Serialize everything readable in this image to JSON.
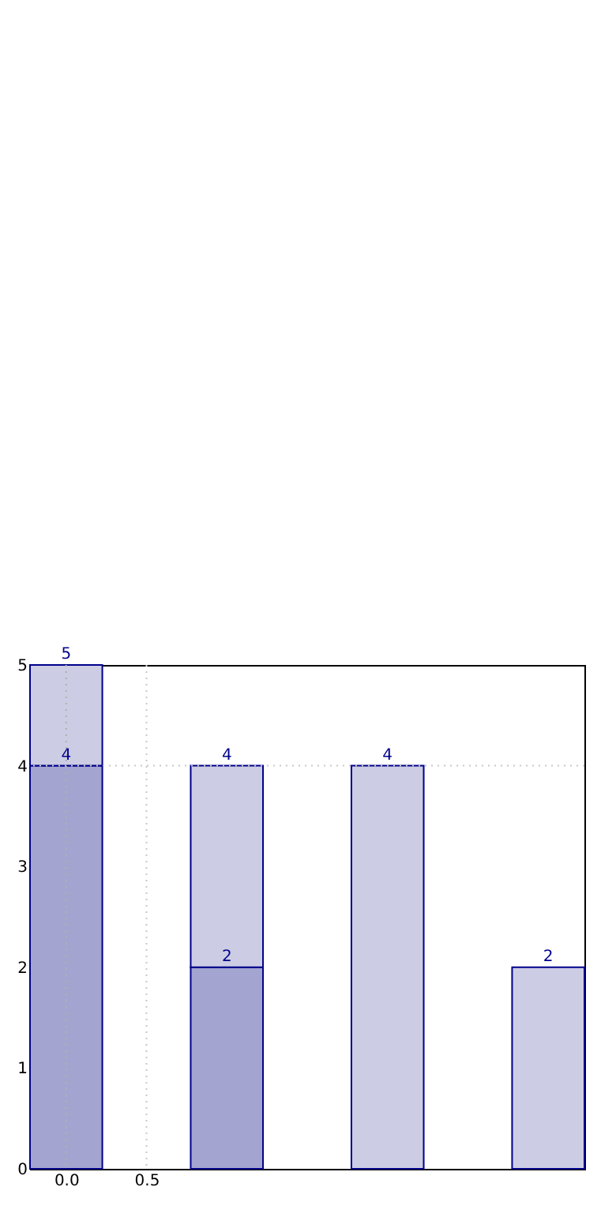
{
  "chart_data": {
    "type": "bar",
    "stacked": true,
    "x": [
      0,
      1,
      2,
      3
    ],
    "series": [
      {
        "color": "#a3a5d0",
        "values": [
          4,
          2,
          null,
          null
        ],
        "value_labels": [
          "4",
          "2",
          null,
          null
        ]
      },
      {
        "color": "#cccce4",
        "values": [
          1,
          2,
          4,
          2
        ]
      }
    ],
    "totals": [
      "5",
      "4",
      "4",
      "2"
    ],
    "xlim": [
      -0.225,
      3.225
    ],
    "xticks": [
      {
        "value": 0,
        "label": "0.0"
      },
      {
        "value": 0.5,
        "label": "0.5"
      }
    ],
    "ylim": [
      0,
      5
    ],
    "yticks": [
      0,
      1,
      2,
      3,
      4,
      5
    ],
    "ref_lines": [
      {
        "axis": "x",
        "value": 0,
        "color": "#b0b0b0",
        "line_style": "dotted"
      },
      {
        "axis": "x",
        "value": 0.5,
        "color": "#c8c8c8",
        "line_style": "dotted"
      },
      {
        "axis": "y",
        "value": 4,
        "color": "#c8c8c8",
        "line_style": "dotted"
      }
    ]
  }
}
